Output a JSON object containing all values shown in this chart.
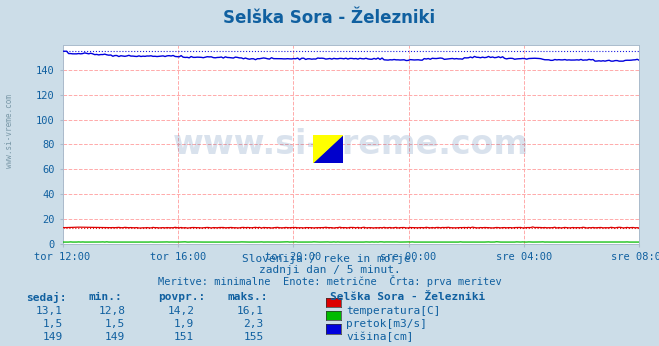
{
  "title": "Selška Sora - Železniki",
  "title_color": "#1060a0",
  "bg_color": "#ccdde8",
  "plot_bg_color": "#ffffff",
  "text_color": "#1060a0",
  "watermark_text": "www.si-vreme.com",
  "watermark_color": "#3060a0",
  "watermark_alpha": 0.18,
  "subtitle1": "Slovenija / reke in morje.",
  "subtitle2": "zadnji dan / 5 minut.",
  "subtitle3": "Meritve: minimalne  Enote: metrične  Črta: prva meritev",
  "xlabel_ticks": [
    "tor 12:00",
    "tor 16:00",
    "tor 20:00",
    "sre 00:00",
    "sre 04:00",
    "sre 08:00"
  ],
  "ylabel_ticks": [
    0,
    20,
    40,
    60,
    80,
    100,
    120,
    140
  ],
  "ymin": 0,
  "ymax": 160,
  "xmin": 0,
  "xmax": 287,
  "grid_color": "#ffaaaa",
  "temp_color": "#dd0000",
  "pretok_color": "#00bb00",
  "visina_color": "#0000dd",
  "ref_line_color_red": "#dd0000",
  "ref_line_color_blue": "#0000dd",
  "legend_labels": [
    "temperatura[C]",
    "pretok[m3/s]",
    "višina[cm]"
  ],
  "legend_colors": [
    "#dd0000",
    "#00bb00",
    "#0000dd"
  ],
  "stats_headers": [
    "sedaj:",
    "min.:",
    "povpr.:",
    "maks.:"
  ],
  "stats_temp": [
    "13,1",
    "12,8",
    "14,2",
    "16,1"
  ],
  "stats_pretok": [
    "1,5",
    "1,5",
    "1,9",
    "2,3"
  ],
  "stats_visina": [
    "149",
    "149",
    "151",
    "155"
  ],
  "station_name": "Selška Sora - Železniki",
  "n_points": 288,
  "temp_first": 13.1,
  "pretok_first": 1.5,
  "visina_first": 155,
  "temp_min": 12.8,
  "temp_max": 16.1,
  "pretok_min": 1.5,
  "pretok_max": 2.3,
  "visina_min": 149,
  "visina_max": 155
}
